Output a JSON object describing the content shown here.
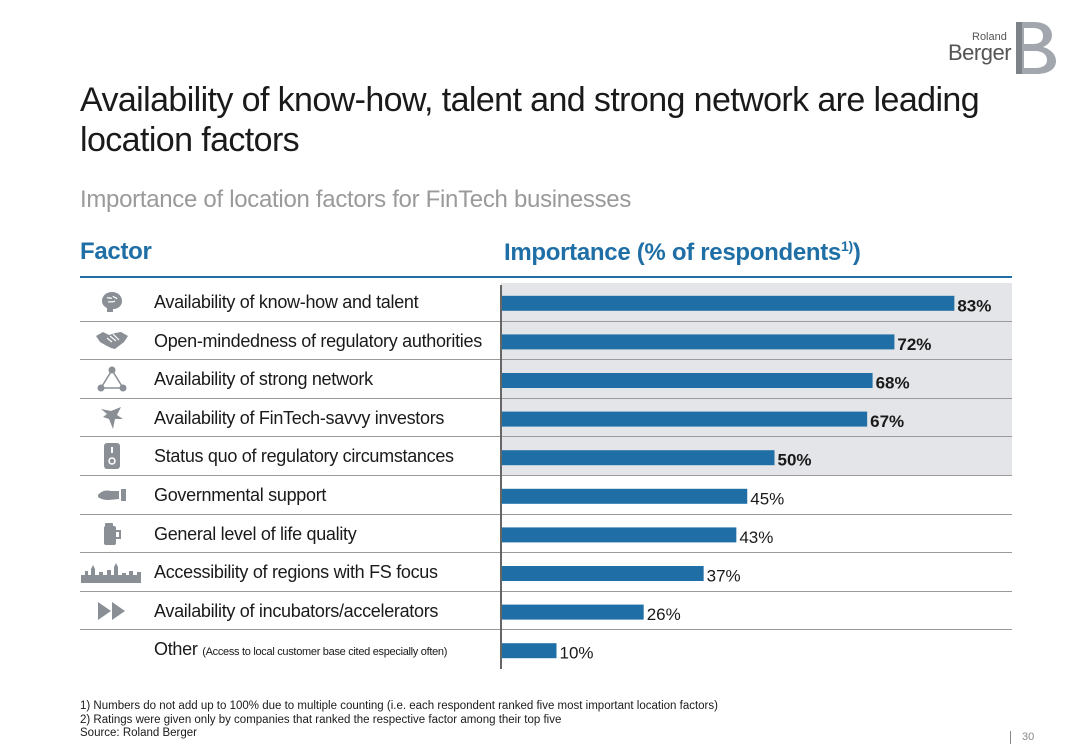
{
  "brand": {
    "small": "Roland",
    "big": "Berger",
    "mark_color": "#9aa0a6"
  },
  "title": "Availability of know-how, talent and strong network are leading location factors",
  "subtitle": "Importance of location factors for FinTech businesses",
  "header": {
    "factor": "Factor",
    "importance": "Importance (% of respondents",
    "importance_sup": "1)",
    "importance_close": ")"
  },
  "colors": {
    "accent": "#1f6fa6",
    "highlight": "#e4e5e9",
    "icon": "#8a8f96"
  },
  "factors": [
    {
      "label": "Availability of know-how and talent",
      "icon": "brain-icon",
      "highlighted": true
    },
    {
      "label": "Open-mindedness of regulatory authorities",
      "icon": "handshake-icon",
      "highlighted": true
    },
    {
      "label": "Availability of strong network",
      "icon": "network-icon",
      "highlighted": true
    },
    {
      "label": "Availability of FinTech-savvy investors",
      "icon": "investor-icon",
      "highlighted": true
    },
    {
      "label": "Status quo of regulatory circumstances",
      "icon": "switch-icon",
      "highlighted": true
    },
    {
      "label": "Governmental support",
      "icon": "hand-icon",
      "highlighted": false
    },
    {
      "label": "General level of life quality",
      "icon": "mug-icon",
      "highlighted": false
    },
    {
      "label": "Accessibility of regions with FS focus",
      "icon": "skyline-icon",
      "highlighted": false
    },
    {
      "label": "Availability of incubators/accelerators",
      "icon": "fast-forward-icon",
      "highlighted": false
    },
    {
      "label": "Other",
      "note": "(Access to local customer base cited especially often)",
      "icon": "",
      "highlighted": false
    }
  ],
  "chart_data": {
    "type": "bar",
    "orientation": "horizontal",
    "title": "Importance (% of respondents1))",
    "categories": [
      "Availability of know-how and talent",
      "Open-mindedness of regulatory authorities",
      "Availability of strong network",
      "Availability of FinTech-savvy investors",
      "Status quo of regulatory circumstances",
      "Governmental support",
      "General level of life quality",
      "Accessibility of regions with FS focus",
      "Availability of incubators/accelerators",
      "Other"
    ],
    "values": [
      83,
      72,
      68,
      67,
      50,
      45,
      43,
      37,
      26,
      10
    ],
    "value_labels": [
      "83%",
      "72%",
      "68%",
      "67%",
      "50%",
      "45%",
      "43%",
      "37%",
      "26%",
      "10%"
    ],
    "bold_labels": [
      true,
      true,
      true,
      true,
      true,
      false,
      false,
      false,
      false,
      false
    ],
    "xlim": [
      0,
      100
    ],
    "bar_color": "#1f6fa6",
    "grid": false
  },
  "footnotes": [
    "1) Numbers do not add up to 100% due to multiple counting (i.e. each respondent ranked five most important location factors)",
    "2) Ratings were given only by companies that ranked the respective factor among their top five",
    "Source: Roland Berger"
  ],
  "page_number": "30"
}
